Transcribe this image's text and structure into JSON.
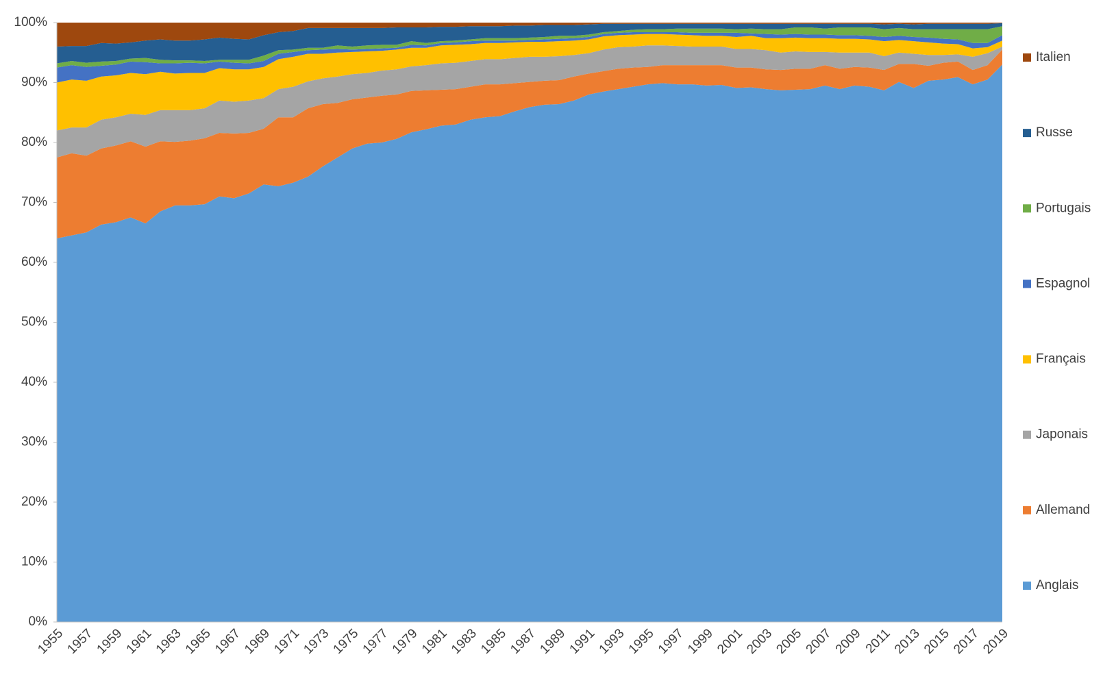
{
  "chart_data": {
    "type": "stacked_area",
    "categories": [
      "1955",
      null,
      "1957",
      null,
      "1959",
      null,
      "1961",
      null,
      "1963",
      null,
      "1965",
      null,
      "1967",
      null,
      "1969",
      null,
      "1971",
      null,
      "1973",
      null,
      "1975",
      null,
      "1977",
      null,
      "1979",
      null,
      "1981",
      null,
      "1983",
      null,
      "1985",
      null,
      "1987",
      null,
      "1989",
      null,
      "1991",
      null,
      "1993",
      null,
      "1995",
      null,
      "1997",
      null,
      "1999",
      null,
      "2001",
      null,
      "2003",
      null,
      "2005",
      null,
      "2007",
      null,
      "2009",
      null,
      "2011",
      null,
      "2013",
      null,
      "2015",
      null,
      "2017",
      null,
      "2019"
    ],
    "series": [
      {
        "name": "Anglais",
        "color": "#5b9bd5",
        "values": [
          64,
          64.5,
          65,
          66.3,
          66.7,
          67.5,
          66.5,
          68.5,
          69.5,
          69.5,
          69.7,
          71,
          70.7,
          71.5,
          73,
          72.7,
          73.3,
          74.3,
          76,
          77.5,
          79,
          79.8,
          80,
          80.6,
          81.7,
          82.2,
          82.8,
          83,
          83.8,
          84.2,
          84.4,
          85.2,
          85.9,
          86.3,
          86.4,
          87,
          88,
          88.5,
          88.9,
          89.3,
          89.7,
          89.9,
          89.7,
          89.7,
          89.5,
          89.6,
          89.1,
          89.2,
          88.9,
          88.7,
          88.8,
          88.9,
          89.5,
          88.9,
          89.5,
          89.3,
          88.7,
          90.1,
          89.1,
          90.3,
          90.5,
          90.9,
          89.7,
          90.5,
          93
        ]
      },
      {
        "name": "Allemand",
        "color": "#ed7d31",
        "values": [
          13.5,
          13.7,
          12.8,
          12.7,
          12.8,
          12.7,
          12.8,
          11.7,
          10.6,
          10.8,
          11,
          10.6,
          10.8,
          10.1,
          9.3,
          11.5,
          10.9,
          11.4,
          10.4,
          9.1,
          8.2,
          7.7,
          7.8,
          7.4,
          6.9,
          6.5,
          6,
          5.9,
          5.5,
          5.5,
          5.3,
          4.7,
          4.2,
          4,
          4,
          4,
          3.5,
          3.4,
          3.4,
          3.2,
          2.9,
          3,
          3.2,
          3.2,
          3.4,
          3.3,
          3.4,
          3.3,
          3.3,
          3.4,
          3.5,
          3.4,
          3.4,
          3.4,
          3.1,
          3.2,
          3.4,
          3,
          4,
          2.5,
          2.8,
          2.6,
          2.4,
          2.4,
          2.5
        ]
      },
      {
        "name": "Japonais",
        "color": "#a5a5a5",
        "values": [
          4.5,
          4.3,
          4.7,
          4.8,
          4.7,
          4.6,
          5.3,
          5.2,
          5.3,
          5.1,
          5,
          5.4,
          5.3,
          5.4,
          5.1,
          4.7,
          5.1,
          4.5,
          4.3,
          4.4,
          4.2,
          4.1,
          4.2,
          4.2,
          4.1,
          4.2,
          4.4,
          4.4,
          4.3,
          4.2,
          4.2,
          4.2,
          4.2,
          4,
          4,
          3.6,
          3.4,
          3.6,
          3.6,
          3.5,
          3.6,
          3.3,
          3.2,
          3.1,
          3.1,
          3.1,
          3.1,
          3.1,
          3.2,
          2.9,
          2.9,
          2.8,
          2.2,
          2.7,
          2.4,
          2.5,
          2.3,
          1.9,
          1.7,
          1.8,
          1.3,
          1.2,
          2.2,
          2,
          0.5
        ]
      },
      {
        "name": "Français",
        "color": "#ffc000",
        "values": [
          8,
          8,
          7.8,
          7.2,
          7,
          6.8,
          6.8,
          6.4,
          6.1,
          6.2,
          5.9,
          5.4,
          5.4,
          5.2,
          5.2,
          5,
          5,
          4.6,
          4.1,
          4,
          3.7,
          3.6,
          3.3,
          3.3,
          3.1,
          2.9,
          3,
          3,
          2.8,
          2.7,
          2.7,
          2.6,
          2.5,
          2.5,
          2.5,
          2.4,
          2.3,
          2.2,
          2,
          2,
          1.9,
          1.9,
          1.9,
          1.9,
          1.8,
          1.8,
          2,
          2.2,
          2,
          2.4,
          2.3,
          2.3,
          2.3,
          2.3,
          2.3,
          2.2,
          2.5,
          2.1,
          2.1,
          2.1,
          1.9,
          1.7,
          1.4,
          1,
          1
        ]
      },
      {
        "name": "Espagnol",
        "color": "#4472c4",
        "values": [
          2.5,
          2.4,
          2.3,
          1.8,
          1.8,
          1.9,
          2,
          1.4,
          1.7,
          1.7,
          1.6,
          1.1,
          1.1,
          1,
          1,
          0.9,
          0.8,
          0.6,
          0.7,
          0.6,
          0.4,
          0.4,
          0.4,
          0.3,
          0.5,
          0.4,
          0.4,
          0.4,
          0.5,
          0.4,
          0.4,
          0.3,
          0.3,
          0.4,
          0.4,
          0.4,
          0.4,
          0.4,
          0.4,
          0.4,
          0.3,
          0.3,
          0.4,
          0.4,
          0.5,
          0.5,
          0.7,
          0.4,
          0.7,
          0.6,
          0.6,
          0.6,
          0.6,
          0.6,
          0.6,
          0.6,
          0.7,
          0.7,
          0.7,
          0.8,
          0.8,
          0.8,
          0.9,
          0.7,
          0.9
        ]
      },
      {
        "name": "Portugais",
        "color": "#70ad47",
        "values": [
          0.7,
          0.7,
          0.7,
          0.7,
          0.6,
          0.5,
          0.7,
          0.6,
          0.5,
          0.4,
          0.4,
          0.3,
          0.5,
          0.6,
          0.9,
          0.6,
          0.4,
          0.4,
          0.3,
          0.6,
          0.5,
          0.6,
          0.6,
          0.5,
          0.6,
          0.4,
          0.3,
          0.3,
          0.3,
          0.4,
          0.4,
          0.4,
          0.4,
          0.4,
          0.5,
          0.4,
          0.4,
          0.3,
          0.3,
          0.4,
          0.5,
          0.5,
          0.6,
          0.7,
          0.7,
          0.7,
          0.6,
          0.8,
          0.8,
          0.9,
          1.1,
          1.2,
          1,
          1.3,
          1.3,
          1.4,
          1.3,
          1.3,
          1.3,
          1.4,
          1.6,
          1.7,
          2.3,
          2.3,
          1.5
        ]
      },
      {
        "name": "Russe",
        "color": "#255e91",
        "values": [
          2.8,
          2.5,
          2.8,
          3.1,
          2.9,
          2.7,
          2.9,
          3.4,
          3.3,
          3.3,
          3.6,
          3.7,
          3.5,
          3.4,
          3.4,
          3,
          3.1,
          3.3,
          3.3,
          2.9,
          3.1,
          2.9,
          2.8,
          2.9,
          2.3,
          2.6,
          2.4,
          2.3,
          2.2,
          2,
          2,
          2.1,
          2,
          2,
          1.8,
          1.8,
          1.7,
          1.4,
          1.2,
          1,
          0.9,
          0.9,
          0.8,
          0.8,
          0.8,
          0.8,
          0.9,
          0.8,
          0.9,
          0.9,
          0.6,
          0.6,
          0.8,
          0.6,
          0.6,
          0.6,
          0.8,
          0.7,
          0.8,
          0.9,
          0.9,
          0.9,
          0.9,
          0.9,
          0.5
        ]
      },
      {
        "name": "Italien",
        "color": "#9e480e",
        "values": [
          4,
          3.9,
          3.9,
          3.4,
          3.5,
          3.3,
          3,
          2.8,
          3,
          3,
          2.8,
          2.5,
          2.7,
          2.8,
          2.1,
          1.6,
          1.4,
          0.9,
          0.9,
          0.9,
          0.9,
          0.9,
          0.9,
          0.8,
          0.8,
          0.8,
          0.7,
          0.7,
          0.6,
          0.6,
          0.6,
          0.5,
          0.5,
          0.4,
          0.4,
          0.4,
          0.3,
          0.2,
          0.2,
          0.2,
          0.2,
          0.2,
          0.2,
          0.2,
          0.2,
          0.2,
          0.2,
          0.2,
          0.2,
          0.2,
          0.2,
          0.2,
          0.2,
          0.2,
          0.2,
          0.2,
          0.3,
          0.2,
          0.3,
          0.2,
          0.2,
          0.2,
          0.2,
          0.2,
          0.1
        ]
      }
    ],
    "ylim": [
      0,
      100
    ],
    "yticks": [
      {
        "value": 0,
        "label": "0%"
      },
      {
        "value": 10,
        "label": "10%"
      },
      {
        "value": 20,
        "label": "20%"
      },
      {
        "value": 30,
        "label": "30%"
      },
      {
        "value": 40,
        "label": "40%"
      },
      {
        "value": 50,
        "label": "50%"
      },
      {
        "value": 60,
        "label": "60%"
      },
      {
        "value": 70,
        "label": "70%"
      },
      {
        "value": 80,
        "label": "80%"
      },
      {
        "value": 90,
        "label": "90%"
      },
      {
        "value": 100,
        "label": "100%"
      }
    ],
    "legend": "right"
  }
}
